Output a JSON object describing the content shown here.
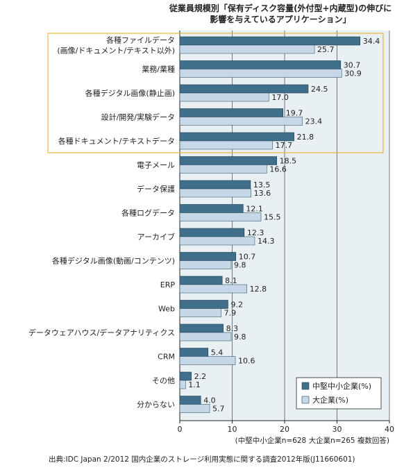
{
  "chart_data": {
    "type": "bar",
    "orientation": "horizontal",
    "title_lines": [
      "従業員規模別「保有ディスク容量(外付型+内蔵型)の伸びに",
      "影響を与えているアプリケーション」"
    ],
    "categories": [
      [
        "各種ファイルデータ",
        "(画像/ドキュメント/テキスト以外)"
      ],
      [
        "業務/業種"
      ],
      [
        "各種デジタル画像(静止画)"
      ],
      [
        "設計/開発/実験データ"
      ],
      [
        "各種ドキュメント/テキストデータ"
      ],
      [
        "電子メール"
      ],
      [
        "データ保護"
      ],
      [
        "各種ログデータ"
      ],
      [
        "アーカイブ"
      ],
      [
        "各種デジタル画像(動画/コンテンツ)"
      ],
      [
        "ERP"
      ],
      [
        "Web"
      ],
      [
        "データウェアハウス/データアナリティクス"
      ],
      [
        "CRM"
      ],
      [
        "その他"
      ],
      [
        "分からない"
      ]
    ],
    "series": [
      {
        "name": "中堅中小企業(%)",
        "color": "#3f6f8a",
        "values": [
          34.4,
          30.7,
          24.5,
          19.7,
          21.8,
          18.5,
          13.5,
          12.1,
          12.3,
          10.7,
          8.1,
          9.2,
          8.3,
          5.4,
          2.2,
          4.0
        ],
        "labels": [
          "34.4",
          "30.7",
          "24.5",
          "19.7",
          "21.8",
          "18.5",
          "13.5",
          "12.1",
          "12.3",
          "10.7",
          "8.1",
          "9.2",
          "8.3",
          "5.4",
          "2.2",
          "4.0"
        ]
      },
      {
        "name": "大企業(%)",
        "color": "#c6d7e8",
        "values": [
          25.7,
          30.9,
          17.0,
          23.4,
          17.7,
          16.6,
          13.6,
          15.5,
          14.3,
          9.8,
          12.8,
          7.9,
          9.8,
          10.6,
          1.1,
          5.7
        ],
        "labels": [
          "25.7",
          "30.9",
          "17.0",
          "23.4",
          "17.7",
          "16.6",
          "13.6",
          "15.5",
          "14.3",
          "9.8",
          "12.8",
          "7.9",
          "9.8",
          "10.6",
          "1.1",
          "5.7"
        ]
      }
    ],
    "xlim": [
      0,
      40
    ],
    "xticks": [
      "0",
      "10",
      "20",
      "30",
      "40"
    ],
    "highlight_group": {
      "first_index": 0,
      "last_index": 4,
      "border_color": "#e8b640"
    },
    "legend_position": "bottom-right",
    "note": "(中堅中小企業n=628 大企業n=265 複数回答)",
    "source": "出典:IDC Japan 2/2012 国内企業のストレージ利用実態に関する調査2012年版(J11660601)",
    "plot_background": "#e8f0f4",
    "grid": true
  }
}
